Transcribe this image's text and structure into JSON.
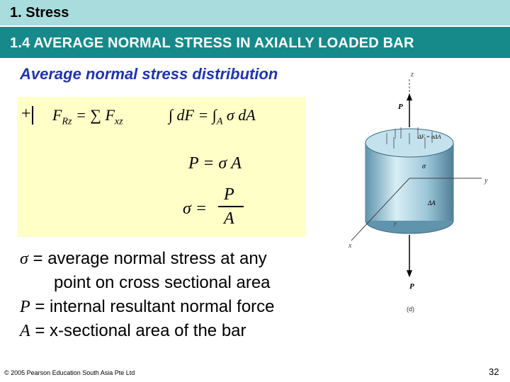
{
  "section_title": "1. Stress",
  "header_title": "1.4 AVERAGE NORMAL STRESS IN AXIALLY LOADED BAR",
  "subtitle": "Average normal stress distribution",
  "equations": {
    "sign": "+",
    "eq1_lhs": "F",
    "eq1_lhs_sub": "Rz",
    "eq1_mid": " = ∑ F",
    "eq1_rhs_sub": "xz",
    "eq2_a": "∫ dF = ∫",
    "eq2_sub": "A",
    "eq2_b": " σ dA",
    "eq3": "P = σ A",
    "eq4_lhs": "σ =",
    "eq4_num": "P",
    "eq4_den": "A"
  },
  "definitions": [
    {
      "symbol": "σ",
      "text": " = average normal stress at any"
    },
    {
      "symbol": "",
      "text": "point on cross sectional area"
    },
    {
      "symbol": "P",
      "text": " = internal resultant normal force"
    },
    {
      "symbol": "A",
      "text": " = x-sectional area of the bar"
    }
  ],
  "figure": {
    "axis_z": "z",
    "axis_y": "y",
    "axis_x": "x",
    "label_p_top": "P",
    "label_p_bottom": "P",
    "label_force": "ΔF = σΔA",
    "label_sigma": "σ",
    "label_area": "ΔA",
    "label_y_small": "y",
    "caption": "(d)"
  },
  "footer": {
    "copyright": "© 2005 Pearson Education South Asia Pte Ltd",
    "page_number": "32"
  }
}
